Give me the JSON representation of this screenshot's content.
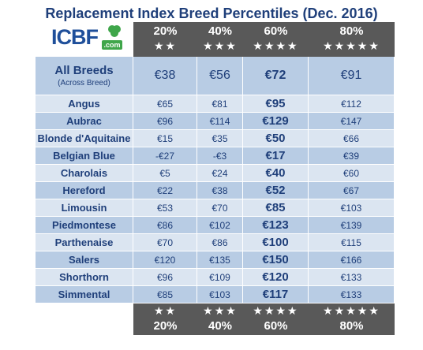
{
  "title": "Replacement Index Breed Percentiles (Dec. 2016)",
  "logo": {
    "text": "ICBF",
    "suffix": ".com"
  },
  "percentiles": [
    {
      "pct": "20%",
      "stars": "★★"
    },
    {
      "pct": "40%",
      "stars": "★★★"
    },
    {
      "pct": "60%",
      "stars": "★★★★"
    },
    {
      "pct": "80%",
      "stars": "★★★★★"
    }
  ],
  "all_breeds": {
    "name": "All Breeds",
    "sub": "(Across Breed)",
    "values": [
      "€38",
      "€56",
      "€72",
      "€91"
    ]
  },
  "breeds": [
    {
      "name": "Angus",
      "values": [
        "€65",
        "€81",
        "€95",
        "€112"
      ]
    },
    {
      "name": "Aubrac",
      "values": [
        "€96",
        "€114",
        "€129",
        "€147"
      ]
    },
    {
      "name": "Blonde d'Aquitaine",
      "values": [
        "€15",
        "€35",
        "€50",
        "€66"
      ]
    },
    {
      "name": "Belgian Blue",
      "values": [
        "-€27",
        "-€3",
        "€17",
        "€39"
      ]
    },
    {
      "name": "Charolais",
      "values": [
        "€5",
        "€24",
        "€40",
        "€60"
      ]
    },
    {
      "name": "Hereford",
      "values": [
        "€22",
        "€38",
        "€52",
        "€67"
      ]
    },
    {
      "name": "Limousin",
      "values": [
        "€53",
        "€70",
        "€85",
        "€103"
      ]
    },
    {
      "name": "Piedmontese",
      "values": [
        "€86",
        "€102",
        "€123",
        "€139"
      ]
    },
    {
      "name": "Parthenaise",
      "values": [
        "€70",
        "€86",
        "€100",
        "€115"
      ]
    },
    {
      "name": "Salers",
      "values": [
        "€120",
        "€135",
        "€150",
        "€166"
      ]
    },
    {
      "name": "Shorthorn",
      "values": [
        "€96",
        "€109",
        "€120",
        "€133"
      ]
    },
    {
      "name": "Simmental",
      "values": [
        "€85",
        "€103",
        "€117",
        "€133"
      ]
    }
  ]
}
